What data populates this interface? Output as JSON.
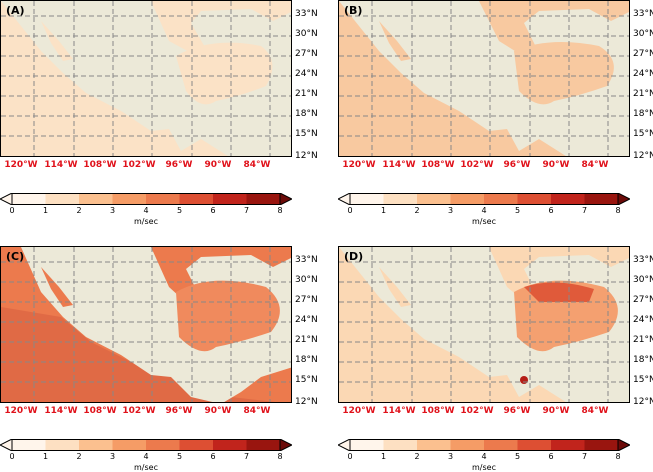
{
  "panels": [
    {
      "label": "(A)"
    },
    {
      "label": "(B)"
    },
    {
      "label": "(C)"
    },
    {
      "label": "(D)"
    }
  ],
  "lat_labels": [
    "33°N",
    "30°N",
    "27°N",
    "24°N",
    "21°N",
    "18°N",
    "15°N",
    "12°N"
  ],
  "lon_labels": [
    "120°W",
    "114°W",
    "108°W",
    "102°W",
    "96°W",
    "90°W",
    "84°W"
  ],
  "colorbar": {
    "ticks": [
      "0",
      "1",
      "2",
      "3",
      "4",
      "5",
      "6",
      "7",
      "8"
    ],
    "unit": "m/sec",
    "colors": [
      "#fff5eb",
      "#fde0c2",
      "#fbc08f",
      "#f59c66",
      "#ec7a4d",
      "#dd4f33",
      "#c1241c",
      "#99150f",
      "#6b0a08"
    ]
  },
  "colors": {
    "land": "#ece9d8",
    "grid": "#888888",
    "lon_label": "#e0121b"
  }
}
